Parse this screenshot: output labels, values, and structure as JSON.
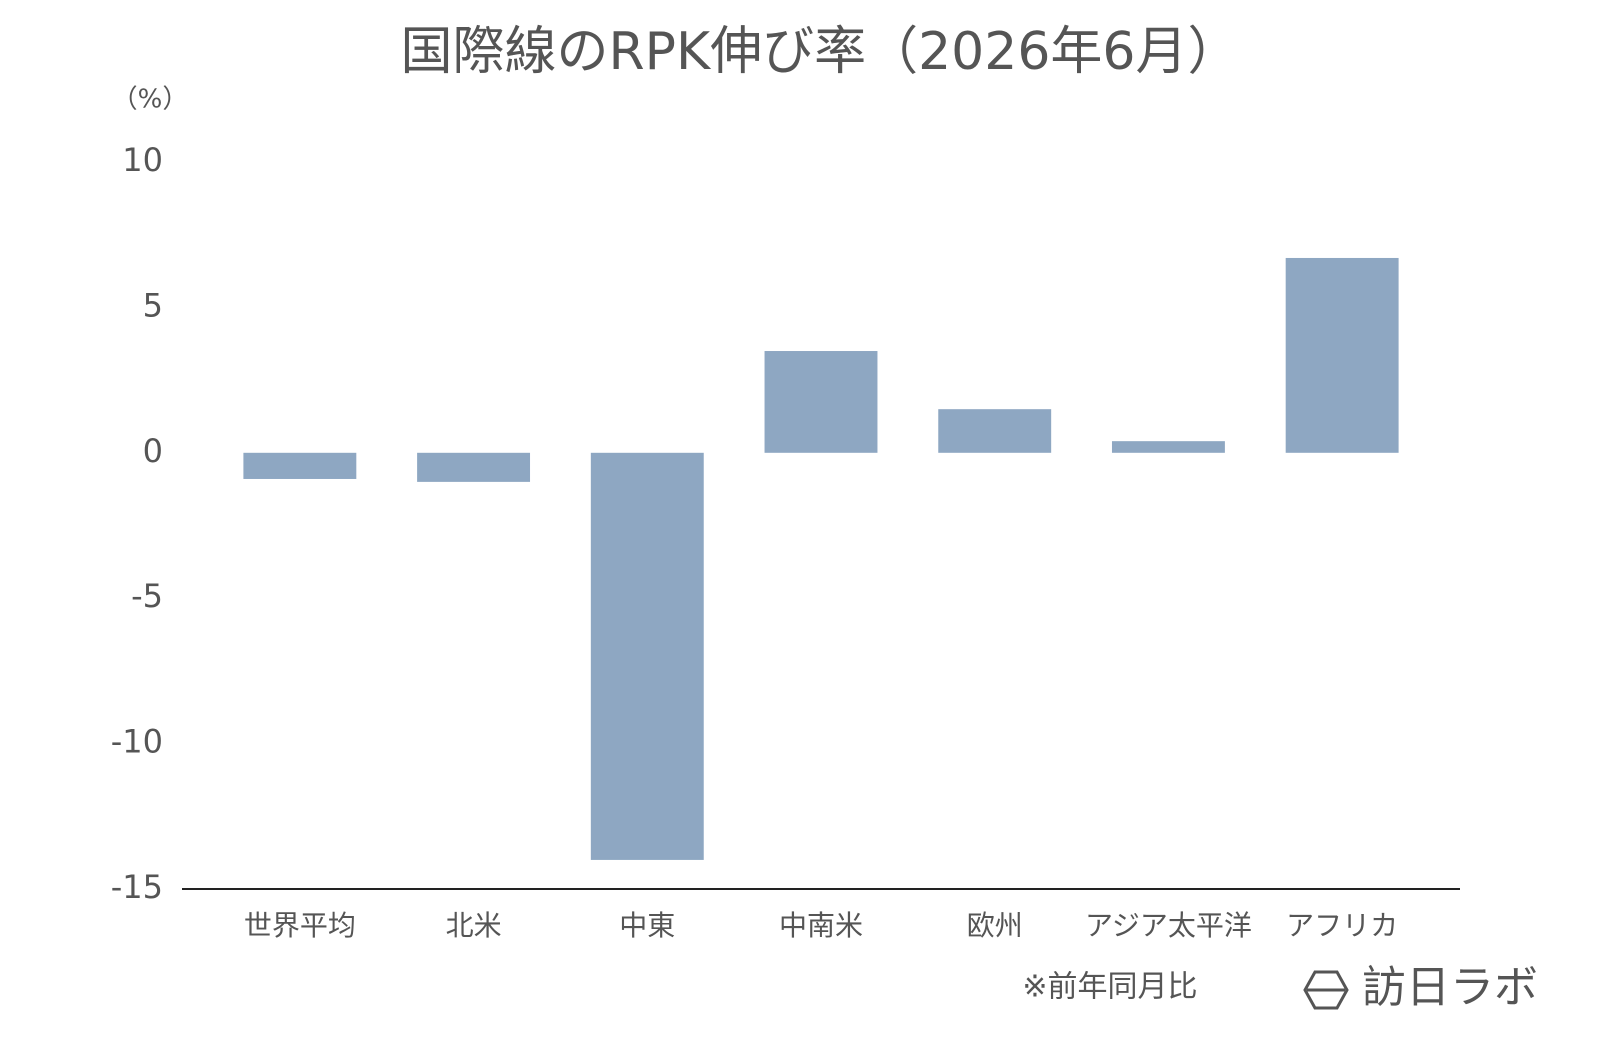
{
  "chart_data": {
    "type": "bar",
    "title": "国際線のRPK伸び率（2026年6月）",
    "unit_label": "（%）",
    "categories": [
      "世界平均",
      "北米",
      "中東",
      "中南米",
      "欧州",
      "アジア太平洋",
      "アフリカ"
    ],
    "values": [
      -0.9,
      -1.0,
      -14.0,
      3.5,
      1.5,
      0.4,
      6.7
    ],
    "color": "#8ea7c2",
    "ylim": [
      -15,
      10
    ],
    "yticks": [
      -15,
      -10,
      -5,
      0,
      5,
      10
    ],
    "grid": false,
    "note": "※前年同月比",
    "brand": "訪日ラボ"
  }
}
